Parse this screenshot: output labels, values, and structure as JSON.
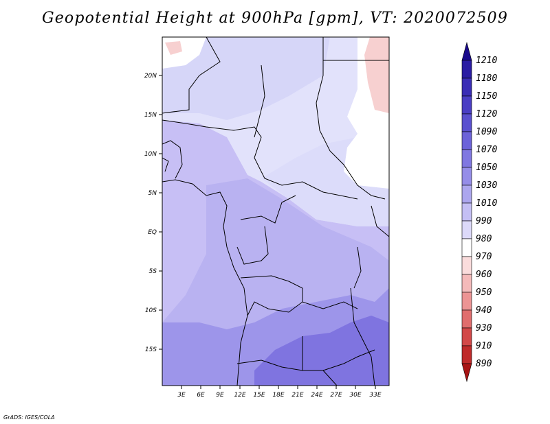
{
  "title": "Geopotential Height at 900hPa [gpm], VT: 2020072509",
  "credit": "GrADS: IGES/COLA",
  "colors": {
    "ocean_west": "#c7bff5",
    "interior": "#b9b2f1",
    "south_medium": "#9d95ea",
    "south_dark": "#7f74e0",
    "north_light": "#e2e2fb",
    "north_pale": "#d6d6f8",
    "sahara_white": "#ffffff",
    "red_patch": "#f7d0d0"
  },
  "map": {
    "lat_labels": [
      "20N",
      "15N",
      "10N",
      "5N",
      "EQ",
      "5S",
      "10S",
      "15S"
    ],
    "lon_labels": [
      "3E",
      "6E",
      "9E",
      "12E",
      "15E",
      "18E",
      "21E",
      "24E",
      "27E",
      "30E",
      "33E"
    ]
  },
  "colorbar": {
    "labels": [
      "1210",
      "1180",
      "1150",
      "1120",
      "1090",
      "1070",
      "1050",
      "1030",
      "1010",
      "990",
      "980",
      "970",
      "960",
      "950",
      "940",
      "930",
      "910",
      "890"
    ],
    "colors": [
      "#1a0a8c",
      "#2a1ca3",
      "#3a2db5",
      "#4a3ec4",
      "#5a50cf",
      "#6c62d9",
      "#8077e1",
      "#958de8",
      "#aca6ee",
      "#c4bff4",
      "#dcd9f9",
      "#ffffff",
      "#fadcdc",
      "#f4baba",
      "#ec9494",
      "#e06d6d",
      "#d24848",
      "#bf2a2a",
      "#a81414"
    ]
  }
}
